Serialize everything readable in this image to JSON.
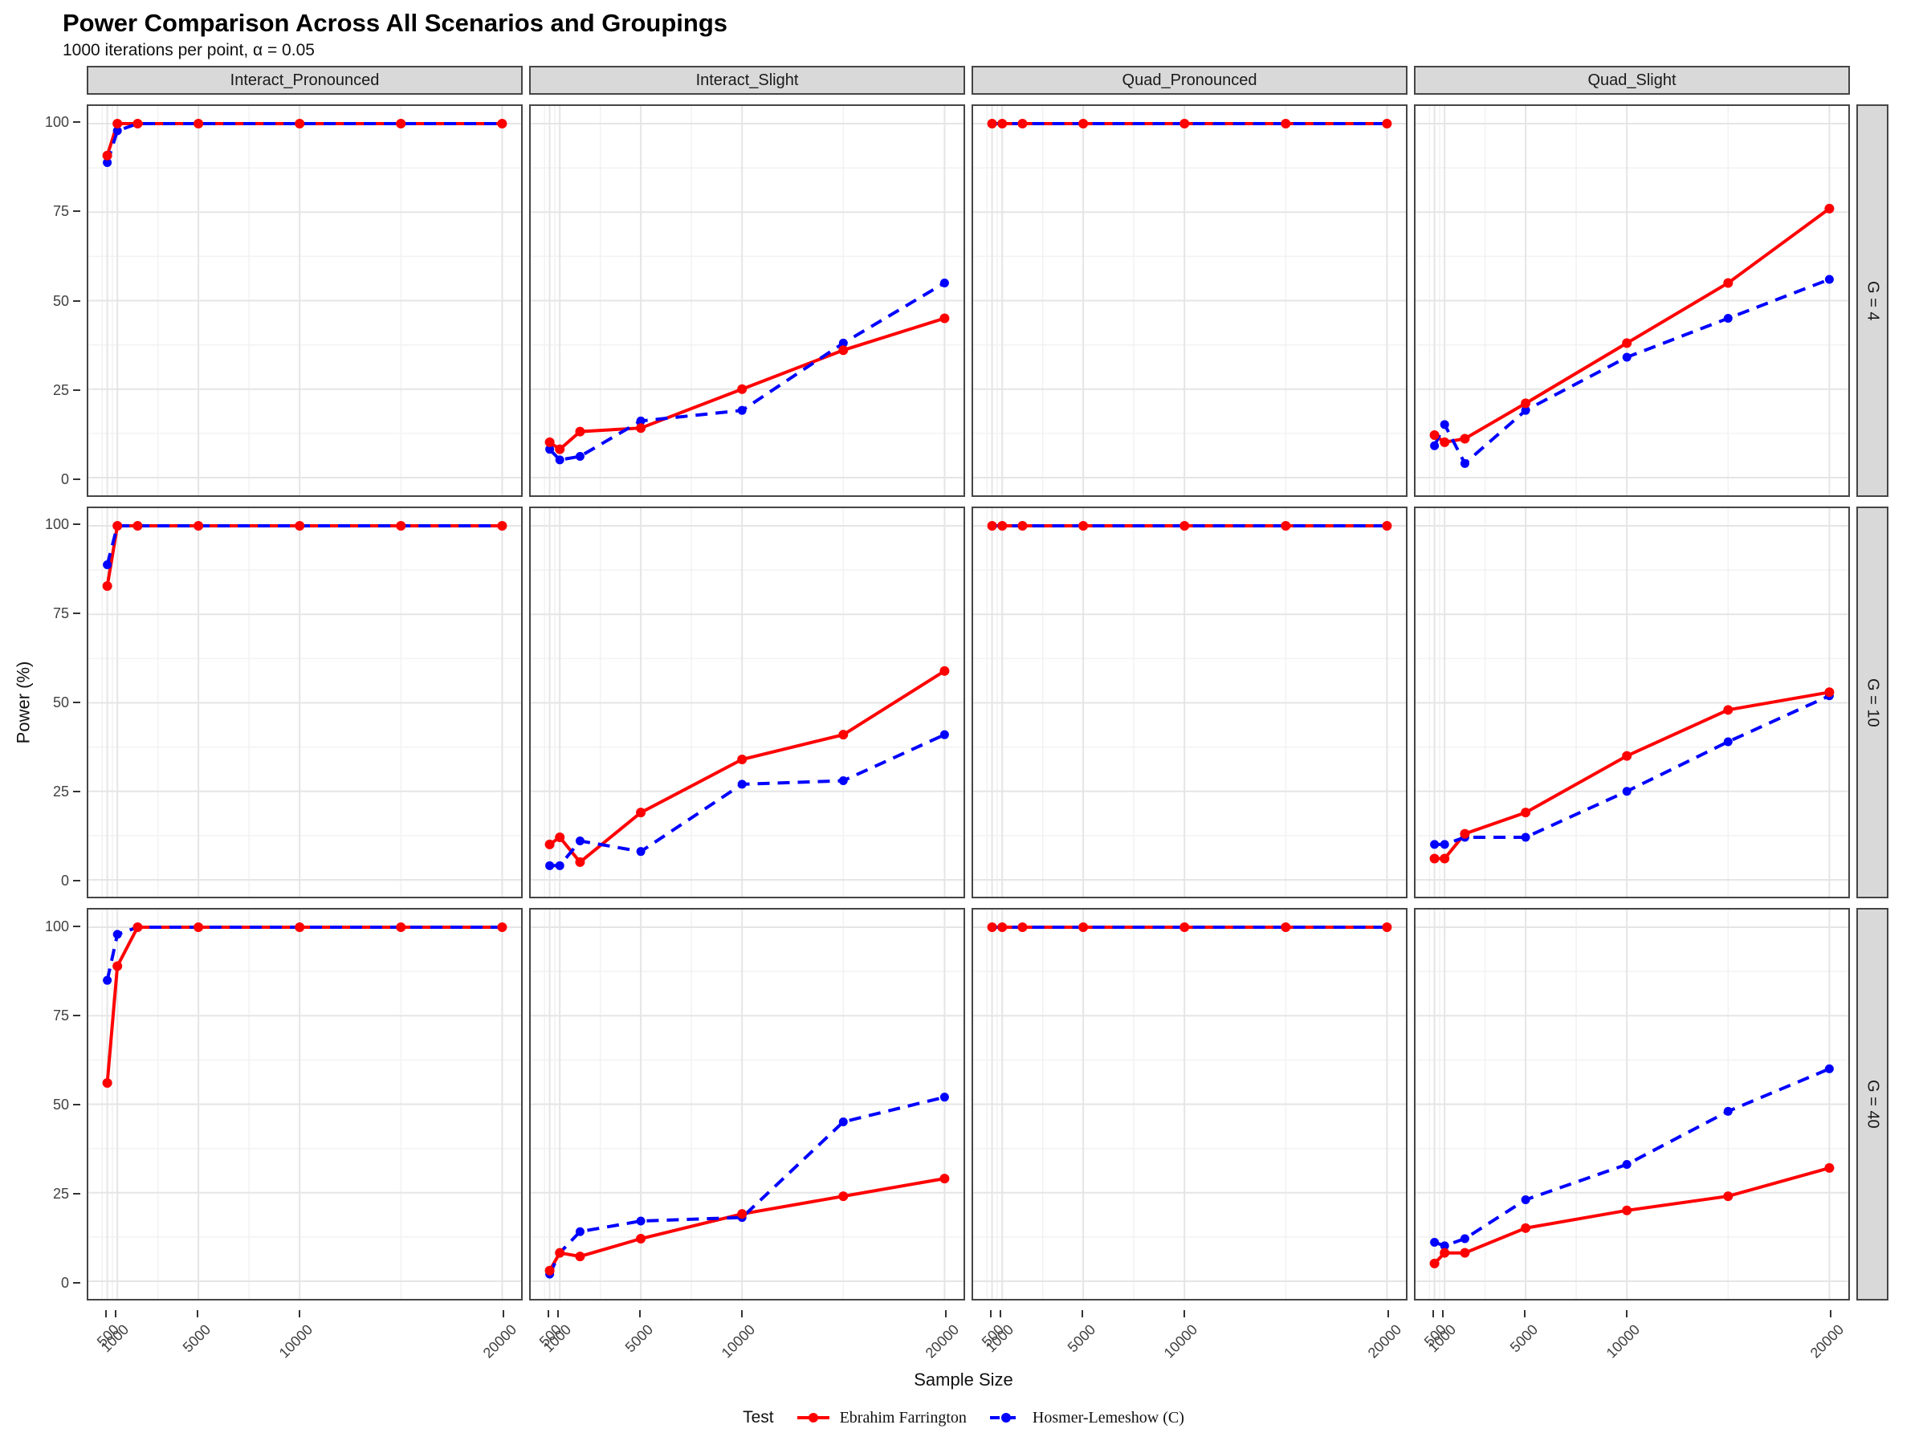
{
  "header": {
    "title": "Power Comparison Across All Scenarios and Groupings",
    "subtitle": "1000 iterations per point, α = 0.05"
  },
  "chart_data": {
    "type": "line",
    "title": "Power Comparison Across All Scenarios and Groupings",
    "subtitle": "1000 iterations per point, α = 0.05",
    "x": [
      500,
      1000,
      2000,
      5000,
      10000,
      15000,
      20000
    ],
    "x_axis": {
      "label": "Sample Size",
      "range": [
        500,
        20000
      ],
      "ticks": [
        500,
        1000,
        5000,
        10000,
        20000
      ],
      "tick_labels": [
        "500",
        "1000",
        "5000",
        "10000",
        "20000"
      ],
      "minor_ticks": [
        250,
        750,
        3000,
        7500,
        15000
      ]
    },
    "y_axis": {
      "label": "Power (%)",
      "range": [
        0,
        100
      ],
      "ticks": [
        0,
        25,
        50,
        75,
        100
      ],
      "tick_labels": [
        "0",
        "25",
        "50",
        "75",
        "100"
      ],
      "minor_ticks": [
        12.5,
        37.5,
        62.5,
        87.5
      ]
    },
    "facet_cols": [
      "Interact_Pronounced",
      "Interact_Slight",
      "Quad_Pronounced",
      "Quad_Slight"
    ],
    "facet_rows": [
      "G = 4",
      "G = 10",
      "G = 40"
    ],
    "legend": {
      "title": "Test",
      "series": [
        {
          "key": "ef",
          "name": "Ebrahim Farrington",
          "color": "#FF0000",
          "style": "solid"
        },
        {
          "key": "hl",
          "name": "Hosmer-Lemeshow (C)",
          "color": "#0000FF",
          "style": "dashed"
        }
      ]
    },
    "grid": {
      "major_color": "#e5e5e5",
      "minor_color": "#f2f2f2",
      "legend_position": "bottom"
    },
    "values": [
      [
        {
          "ef": [
            91,
            100,
            100,
            100,
            100,
            100,
            100
          ],
          "hl": [
            89,
            98,
            100,
            100,
            100,
            100,
            100
          ]
        },
        {
          "ef": [
            10,
            8,
            13,
            14,
            25,
            36,
            45
          ],
          "hl": [
            8,
            5,
            6,
            16,
            19,
            38,
            55
          ]
        },
        {
          "ef": [
            100,
            100,
            100,
            100,
            100,
            100,
            100
          ],
          "hl": [
            100,
            100,
            100,
            100,
            100,
            100,
            100
          ]
        },
        {
          "ef": [
            12,
            10,
            11,
            21,
            38,
            55,
            76
          ],
          "hl": [
            9,
            15,
            4,
            19,
            34,
            45,
            56
          ]
        }
      ],
      [
        {
          "ef": [
            83,
            100,
            100,
            100,
            100,
            100,
            100
          ],
          "hl": [
            89,
            100,
            100,
            100,
            100,
            100,
            100
          ]
        },
        {
          "ef": [
            10,
            12,
            5,
            19,
            34,
            41,
            59
          ],
          "hl": [
            4,
            4,
            11,
            8,
            27,
            28,
            41
          ]
        },
        {
          "ef": [
            100,
            100,
            100,
            100,
            100,
            100,
            100
          ],
          "hl": [
            100,
            100,
            100,
            100,
            100,
            100,
            100
          ]
        },
        {
          "ef": [
            6,
            6,
            13,
            19,
            35,
            48,
            53
          ],
          "hl": [
            10,
            10,
            12,
            12,
            25,
            39,
            52
          ]
        }
      ],
      [
        {
          "ef": [
            56,
            89,
            100,
            100,
            100,
            100,
            100
          ],
          "hl": [
            85,
            98,
            100,
            100,
            100,
            100,
            100
          ]
        },
        {
          "ef": [
            3,
            8,
            7,
            12,
            19,
            24,
            29
          ],
          "hl": [
            2,
            8,
            14,
            17,
            18,
            45,
            52
          ]
        },
        {
          "ef": [
            100,
            100,
            100,
            100,
            100,
            100,
            100
          ],
          "hl": [
            100,
            100,
            100,
            100,
            100,
            100,
            100
          ]
        },
        {
          "ef": [
            5,
            8,
            8,
            15,
            20,
            24,
            32
          ],
          "hl": [
            11,
            10,
            12,
            23,
            33,
            48,
            60
          ]
        }
      ]
    ]
  }
}
